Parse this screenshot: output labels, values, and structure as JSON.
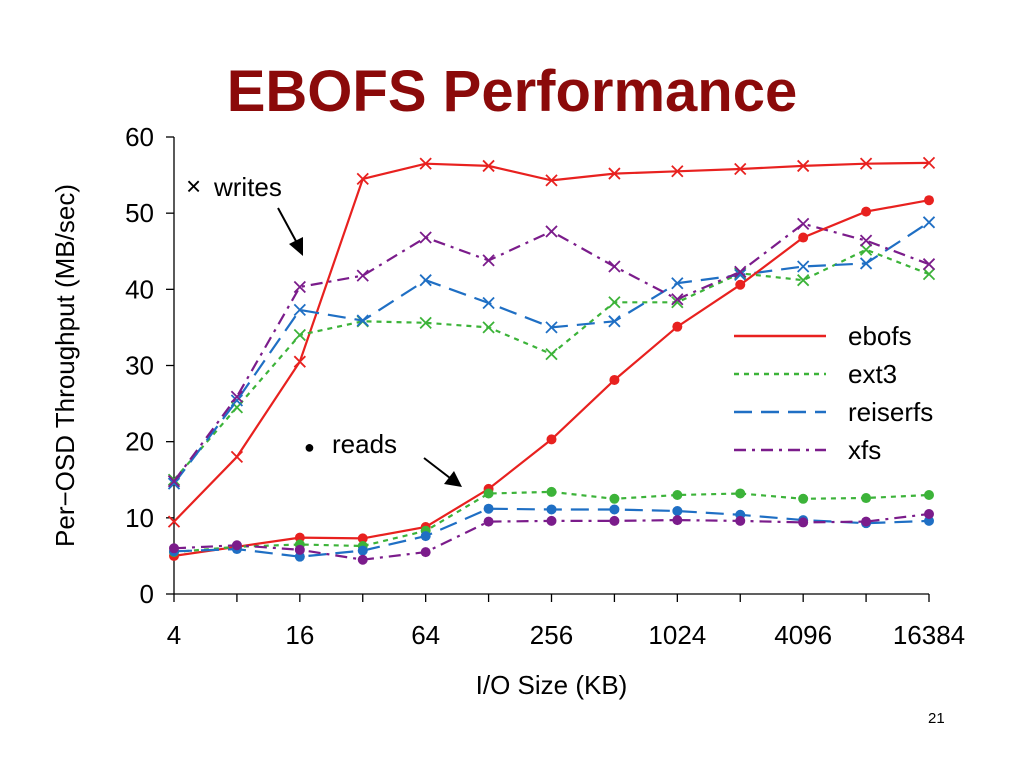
{
  "slide": {
    "title": "EBOFS Performance",
    "page_number": "21"
  },
  "chart_data": {
    "type": "line",
    "title": "",
    "xlabel": "I/O Size (KB)",
    "ylabel": "Per−OSD Throughput (MB/sec)",
    "x_scale": "log2",
    "x": [
      4,
      8,
      16,
      32,
      64,
      128,
      256,
      512,
      1024,
      2048,
      4096,
      8192,
      16384
    ],
    "x_tick_labels": [
      "4",
      "16",
      "64",
      "256",
      "1024",
      "4096",
      "16384"
    ],
    "x_tick_values": [
      4,
      16,
      64,
      256,
      1024,
      4096,
      16384
    ],
    "ylim": [
      0,
      60
    ],
    "y_ticks": [
      0,
      10,
      20,
      30,
      40,
      50,
      60
    ],
    "legend_position": "right-middle",
    "series": [
      {
        "name": "ebofs",
        "op": "writes",
        "color": "#e8211f",
        "dash": "solid",
        "marker": "x",
        "values": [
          9.5,
          18,
          30.5,
          54.5,
          56.5,
          56.2,
          54.3,
          55.2,
          55.5,
          55.8,
          56.2,
          56.5,
          56.6
        ]
      },
      {
        "name": "ext3",
        "op": "writes",
        "color": "#3cb339",
        "dash": "dotted",
        "marker": "x",
        "values": [
          15,
          24.5,
          34,
          35.8,
          35.6,
          35,
          31.5,
          38.3,
          38.3,
          42.1,
          41.2,
          45.2,
          42
        ]
      },
      {
        "name": "reiserfs",
        "op": "writes",
        "color": "#1f6fc4",
        "dash": "longdash",
        "marker": "x",
        "values": [
          14.5,
          25.4,
          37.3,
          35.9,
          41.2,
          38.2,
          35,
          35.8,
          40.8,
          41.9,
          43,
          43.4,
          48.8
        ]
      },
      {
        "name": "xfs",
        "op": "writes",
        "color": "#7b1c8b",
        "dash": "dashdot",
        "marker": "x",
        "values": [
          14.8,
          25.9,
          40.3,
          41.8,
          46.8,
          43.8,
          47.6,
          43,
          38.7,
          42.3,
          48.6,
          46.4,
          43.3
        ]
      },
      {
        "name": "ebofs",
        "op": "reads",
        "color": "#e8211f",
        "dash": "solid",
        "marker": "dot",
        "values": [
          5,
          6.2,
          7.4,
          7.3,
          8.8,
          13.8,
          20.3,
          28.1,
          35.1,
          40.6,
          46.8,
          50.2,
          51.7
        ]
      },
      {
        "name": "ext3",
        "op": "reads",
        "color": "#3cb339",
        "dash": "dotted",
        "marker": "dot",
        "values": [
          5.5,
          6.2,
          6.5,
          6.3,
          8.3,
          13.2,
          13.4,
          12.5,
          13,
          13.2,
          12.5,
          12.6,
          13
        ]
      },
      {
        "name": "reiserfs",
        "op": "reads",
        "color": "#1f6fc4",
        "dash": "longdash",
        "marker": "dot",
        "values": [
          5.6,
          5.9,
          4.9,
          5.7,
          7.6,
          11.2,
          11.1,
          11.1,
          10.9,
          10.4,
          9.7,
          9.3,
          9.6
        ]
      },
      {
        "name": "xfs",
        "op": "reads",
        "color": "#7b1c8b",
        "dash": "dashdot",
        "marker": "dot",
        "values": [
          6,
          6.4,
          5.8,
          4.5,
          5.5,
          9.5,
          9.6,
          9.6,
          9.7,
          9.6,
          9.4,
          9.5,
          10.5
        ]
      }
    ],
    "legend": [
      {
        "name": "ebofs",
        "color": "#e8211f",
        "dash": "solid"
      },
      {
        "name": "ext3",
        "color": "#3cb339",
        "dash": "dotted"
      },
      {
        "name": "reiserfs",
        "color": "#1f6fc4",
        "dash": "longdash"
      },
      {
        "name": "xfs",
        "color": "#7b1c8b",
        "dash": "dashdot"
      }
    ],
    "annotations": {
      "writes_symbol": "×",
      "writes_label": "writes",
      "reads_symbol": "●",
      "reads_label": "reads"
    }
  }
}
